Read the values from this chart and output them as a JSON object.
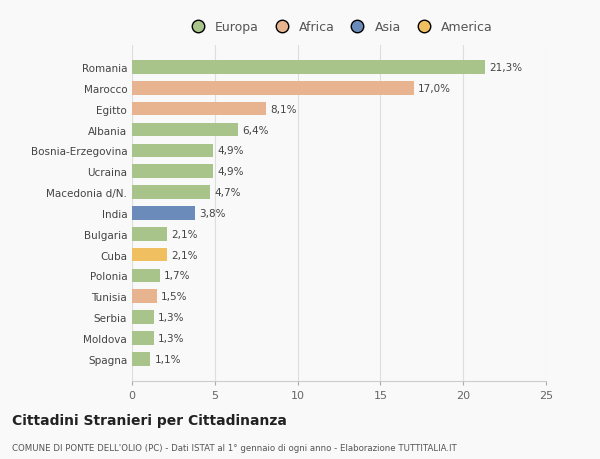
{
  "categories": [
    "Romania",
    "Marocco",
    "Egitto",
    "Albania",
    "Bosnia-Erzegovina",
    "Ucraina",
    "Macedonia d/N.",
    "India",
    "Bulgaria",
    "Cuba",
    "Polonia",
    "Tunisia",
    "Serbia",
    "Moldova",
    "Spagna"
  ],
  "values": [
    21.3,
    17.0,
    8.1,
    6.4,
    4.9,
    4.9,
    4.7,
    3.8,
    2.1,
    2.1,
    1.7,
    1.5,
    1.3,
    1.3,
    1.1
  ],
  "labels": [
    "21,3%",
    "17,0%",
    "8,1%",
    "6,4%",
    "4,9%",
    "4,9%",
    "4,7%",
    "3,8%",
    "2,1%",
    "2,1%",
    "1,7%",
    "1,5%",
    "1,3%",
    "1,3%",
    "1,1%"
  ],
  "colors": [
    "#a8c48a",
    "#e8b490",
    "#e8b490",
    "#a8c48a",
    "#a8c48a",
    "#a8c48a",
    "#a8c48a",
    "#6b8cba",
    "#a8c48a",
    "#f0c060",
    "#a8c48a",
    "#e8b490",
    "#a8c48a",
    "#a8c48a",
    "#a8c48a"
  ],
  "legend_labels": [
    "Europa",
    "Africa",
    "Asia",
    "America"
  ],
  "legend_colors": [
    "#a8c48a",
    "#e8b490",
    "#6b8cba",
    "#f0c060"
  ],
  "xlim": [
    0,
    25
  ],
  "xticks": [
    0,
    5,
    10,
    15,
    20,
    25
  ],
  "title": "Cittadini Stranieri per Cittadinanza",
  "subtitle": "COMUNE DI PONTE DELL'OLIO (PC) - Dati ISTAT al 1° gennaio di ogni anno - Elaborazione TUTTITALIA.IT",
  "background_color": "#f9f9f9",
  "grid_color": "#dddddd",
  "bar_height": 0.65
}
